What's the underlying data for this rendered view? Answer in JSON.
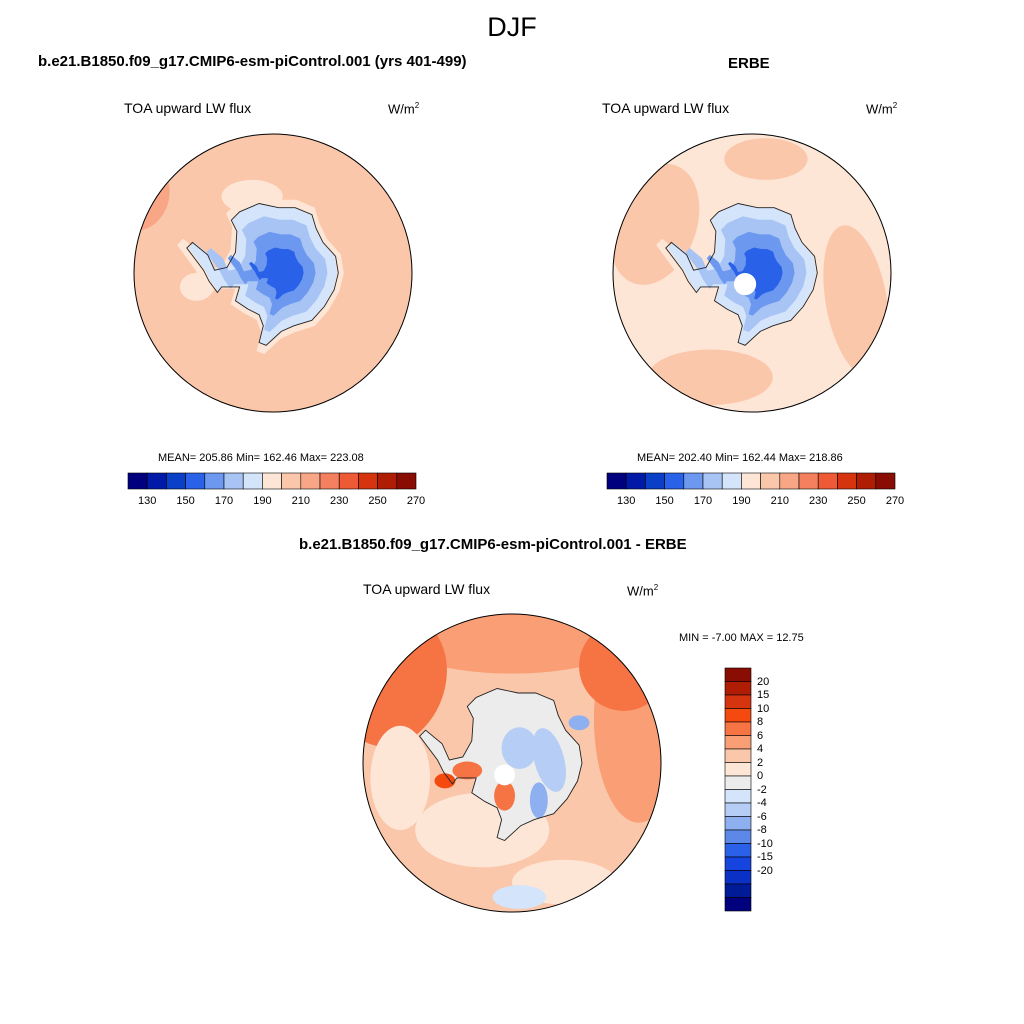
{
  "figure": {
    "title": "DJF"
  },
  "panels": {
    "model": {
      "title": "b.e21.B1850.f09_g17.CMIP6-esm-piControl.001 (yrs 401-499)",
      "variable": "TOA upward LW flux",
      "units": "W/m",
      "units_sup": "2",
      "stats": "MEAN= 205.86  Min= 162.46  Max= 223.08"
    },
    "obs": {
      "title": "ERBE",
      "variable": "TOA upward LW flux",
      "units": "W/m",
      "units_sup": "2",
      "stats": "MEAN= 202.40  Min= 162.44  Max= 218.86"
    },
    "diff": {
      "title": "b.e21.B1850.f09_g17.CMIP6-esm-piControl.001 - ERBE",
      "variable": "TOA upward LW flux",
      "units": "W/m",
      "units_sup": "2",
      "stats": "MIN =  -7.00 MAX =  12.75"
    }
  },
  "colorbars": {
    "abs": {
      "colors": [
        "#00007f",
        "#0019a6",
        "#0a3fc8",
        "#2962e8",
        "#6d98f0",
        "#a7c4f5",
        "#d4e4fa",
        "#fde6d6",
        "#fbc7ab",
        "#f8a686",
        "#f4805f",
        "#ee5a35",
        "#d6340f",
        "#b01d05",
        "#8a0d03"
      ],
      "tick_labels": [
        "130",
        "150",
        "170",
        "190",
        "210",
        "230",
        "250",
        "270"
      ]
    },
    "diff": {
      "colors": [
        "#8a0d03",
        "#b01d05",
        "#d6340f",
        "#f44a10",
        "#f67344",
        "#f99e75",
        "#fbc7ab",
        "#fde6d6",
        "#ececec",
        "#d4e4fa",
        "#b6cdf5",
        "#8eb0f0",
        "#5c88e8",
        "#2b61e8",
        "#1644df",
        "#0a30c5",
        "#001b98",
        "#00007f"
      ],
      "tick_labels": [
        "20",
        "15",
        "10",
        "8",
        "6",
        "4",
        "2",
        "0",
        "-2",
        "-4",
        "-6",
        "-8",
        "-10",
        "-15",
        "-20"
      ]
    }
  }
}
